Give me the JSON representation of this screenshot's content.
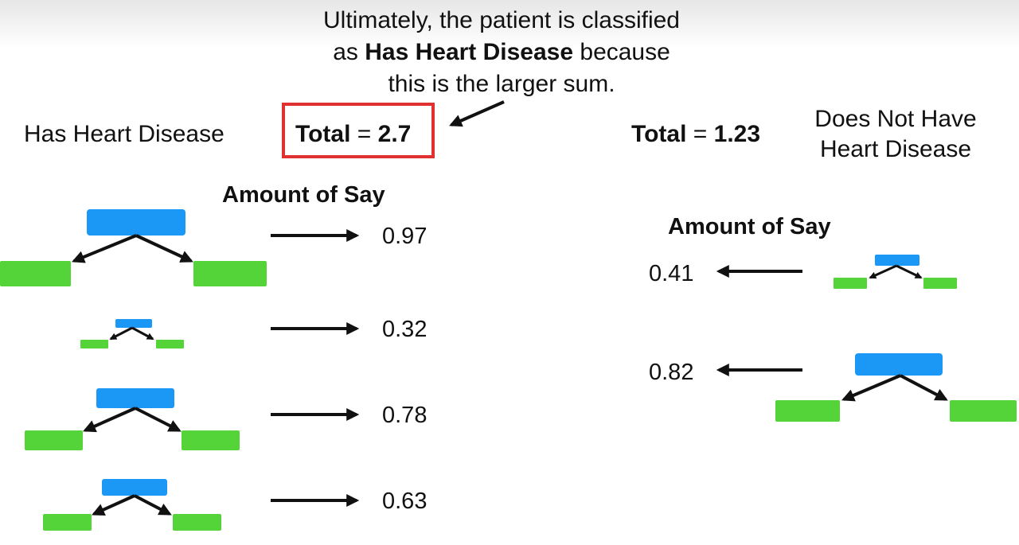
{
  "caption": {
    "before": "Ultimately, the patient is classified",
    "as_prefix": "as ",
    "as_bold": "Has Heart Disease",
    "as_suffix": " because",
    "last_line": "this is the larger sum."
  },
  "has_disease": {
    "label": "Has Heart Disease",
    "total_word": "Total",
    "equals": " = ",
    "total_value": "2.7",
    "heading": "Amount of Say",
    "amounts": [
      "0.97",
      "0.32",
      "0.78",
      "0.63"
    ]
  },
  "no_disease": {
    "label_line1": "Does Not Have",
    "label_line2": "Heart Disease",
    "total_word": "Total",
    "equals": " = ",
    "total_value": "1.23",
    "heading": "Amount of Say",
    "amounts": [
      "0.41",
      "0.82"
    ]
  },
  "colors": {
    "stump_root": "#1b97f5",
    "stump_leaf": "#55d43a",
    "highlight": "#e03030",
    "arrow": "#111111"
  }
}
